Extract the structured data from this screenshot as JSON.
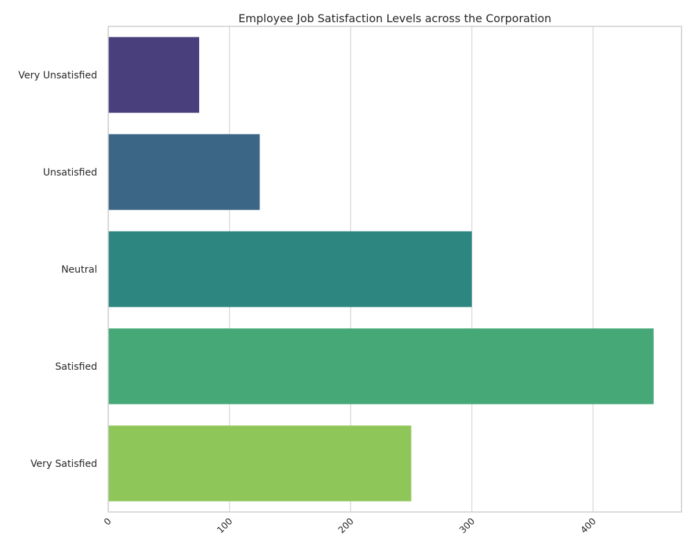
{
  "chart_data": {
    "type": "bar",
    "orientation": "horizontal",
    "title": "Employee Job Satisfaction Levels across the Corporation",
    "xlabel": "",
    "ylabel": "",
    "categories": [
      "Very Unsatisfied",
      "Unsatisfied",
      "Neutral",
      "Satisfied",
      "Very Satisfied"
    ],
    "values": [
      75,
      125,
      300,
      450,
      250
    ],
    "colors": [
      "#4a3f7d",
      "#3b6685",
      "#2e8680",
      "#47a877",
      "#8fc65a"
    ],
    "xlim": [
      0,
      473
    ],
    "xticks": [
      0,
      100,
      200,
      300,
      400
    ],
    "xtick_rotation": -45,
    "grid": "vertical",
    "legend": "none"
  }
}
